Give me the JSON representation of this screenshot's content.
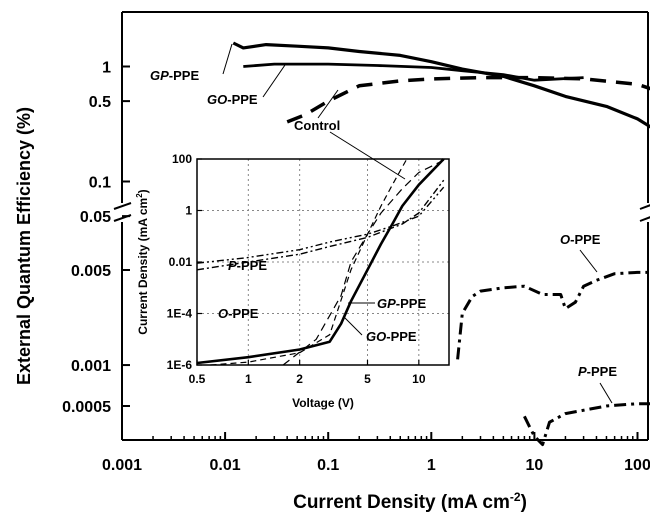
{
  "chart_data": [
    {
      "type": "line",
      "xlabel": "Current Density (mA cm",
      "xlabel_sup": "-2",
      "xlabel_close": ")",
      "ylabel": "External Quantum Efficiency (%)",
      "xscale": "log",
      "yscale": "log (broken axis)",
      "xlim": [
        0.001,
        150
      ],
      "xticks": [
        {
          "v": 0.001,
          "t": "0.001"
        },
        {
          "v": 0.01,
          "t": "0.01"
        },
        {
          "v": 0.1,
          "t": "0.1"
        },
        {
          "v": 1,
          "t": "1"
        },
        {
          "v": 10,
          "t": "10"
        },
        {
          "v": 100,
          "t": "100"
        }
      ],
      "yticks_upper": [
        {
          "v": 1,
          "t": "1"
        },
        {
          "v": 0.5,
          "t": "0.5"
        },
        {
          "v": 0.1,
          "t": "0.1"
        },
        {
          "v": 0.05,
          "t": "0.05"
        }
      ],
      "yticks_lower": [
        {
          "v": 0.005,
          "t": "0.005"
        },
        {
          "v": 0.001,
          "t": "0.001"
        },
        {
          "v": 0.0005,
          "t": "0.0005"
        }
      ],
      "series": [
        {
          "name": "GP-PPE",
          "name_it": "GP",
          "name_rest": "-PPE",
          "style": "solid-thick",
          "points": [
            [
              0.012,
              1.6
            ],
            [
              0.015,
              1.45
            ],
            [
              0.025,
              1.55
            ],
            [
              0.05,
              1.5
            ],
            [
              0.1,
              1.45
            ],
            [
              0.2,
              1.35
            ],
            [
              0.5,
              1.25
            ],
            [
              1,
              1.1
            ],
            [
              2,
              0.95
            ],
            [
              5,
              0.82
            ],
            [
              10,
              0.68
            ],
            [
              20,
              0.55
            ],
            [
              50,
              0.45
            ],
            [
              100,
              0.35
            ],
            [
              150,
              0.28
            ]
          ]
        },
        {
          "name": "GO-PPE",
          "name_it": "GO",
          "name_rest": "-PPE",
          "style": "solid",
          "points": [
            [
              0.015,
              1.0
            ],
            [
              0.03,
              1.05
            ],
            [
              0.1,
              1.05
            ],
            [
              0.3,
              1.02
            ],
            [
              1,
              0.98
            ],
            [
              2,
              0.92
            ],
            [
              5,
              0.85
            ],
            [
              10,
              0.76
            ],
            [
              30,
              0.8
            ]
          ]
        },
        {
          "name": "Control",
          "name_it": "",
          "name_rest": "Control",
          "style": "dashed",
          "points": [
            [
              0.04,
              0.33
            ],
            [
              0.06,
              0.38
            ],
            [
              0.1,
              0.5
            ],
            [
              0.2,
              0.68
            ],
            [
              0.5,
              0.75
            ],
            [
              1,
              0.78
            ],
            [
              3,
              0.8
            ],
            [
              10,
              0.8
            ],
            [
              30,
              0.78
            ],
            [
              100,
              0.7
            ],
            [
              150,
              0.62
            ]
          ]
        },
        {
          "name": "O-PPE",
          "name_it": "O",
          "name_rest": "-PPE",
          "style": "dash-dot",
          "points": [
            [
              1.8,
              0.0011
            ],
            [
              2,
              0.0024
            ],
            [
              2.5,
              0.0032
            ],
            [
              3,
              0.0035
            ],
            [
              5,
              0.0037
            ],
            [
              8,
              0.0038
            ],
            [
              12,
              0.0033
            ],
            [
              18,
              0.0033
            ],
            [
              20,
              0.0026
            ],
            [
              25,
              0.0029
            ],
            [
              30,
              0.0038
            ],
            [
              40,
              0.0042
            ],
            [
              60,
              0.0047
            ],
            [
              100,
              0.0048
            ],
            [
              150,
              0.0048
            ]
          ]
        },
        {
          "name": "P-PPE",
          "name_it": "P",
          "name_rest": "-PPE",
          "style": "dash-dot",
          "points": [
            [
              8,
              0.00042
            ],
            [
              9,
              0.00035
            ],
            [
              10,
              0.0003
            ],
            [
              12,
              0.00026
            ],
            [
              14,
              0.00038
            ],
            [
              20,
              0.00044
            ],
            [
              50,
              0.0005
            ],
            [
              100,
              0.00052
            ],
            [
              150,
              0.00052
            ]
          ]
        }
      ]
    },
    {
      "type": "line",
      "xlabel": "Voltage (V)",
      "ylabel": "Current Density (mA cm",
      "ylabel_sup": "2",
      "ylabel_close": ")",
      "xscale": "log",
      "yscale": "log",
      "xlim": [
        0.5,
        15
      ],
      "ylim": [
        1e-06,
        100
      ],
      "xticks": [
        {
          "v": 0.5,
          "t": "0.5"
        },
        {
          "v": 1,
          "t": "1"
        },
        {
          "v": 2,
          "t": "2"
        },
        {
          "v": 5,
          "t": "5"
        },
        {
          "v": 10,
          "t": "10"
        }
      ],
      "yticks": [
        {
          "v": 100,
          "t": "100"
        },
        {
          "v": 1,
          "t": "1"
        },
        {
          "v": 0.01,
          "t": "0.01"
        },
        {
          "v": 0.0001,
          "t": "1E-4"
        },
        {
          "v": 1e-06,
          "t": "1E-6"
        }
      ],
      "grid": true,
      "series": [
        {
          "name": "GP-PPE",
          "name_it": "GP",
          "name_rest": "-PPE",
          "style": "solid",
          "points": [
            [
              0.5,
              1.2e-06
            ],
            [
              1,
              2e-06
            ],
            [
              2,
              4e-06
            ],
            [
              3,
              8e-06
            ],
            [
              3.5,
              4e-05
            ],
            [
              4,
              0.0003
            ],
            [
              5,
              0.005
            ],
            [
              6,
              0.05
            ],
            [
              7,
              0.3
            ],
            [
              8,
              1.5
            ],
            [
              10,
              10
            ],
            [
              14,
              100
            ]
          ]
        },
        {
          "name": "GO-PPE",
          "name_it": "GO",
          "name_rest": "-PPE",
          "style": "dashed",
          "points": [
            [
              0.6,
              1e-06
            ],
            [
              1,
              1.3e-06
            ],
            [
              2,
              3e-06
            ],
            [
              3,
              1.5e-05
            ],
            [
              4,
              0.005
            ],
            [
              5,
              0.12
            ],
            [
              6,
              1.5
            ],
            [
              7,
              10
            ],
            [
              8.5,
              100
            ]
          ]
        },
        {
          "name": "Control",
          "name_it": "",
          "name_rest": "Control",
          "style": "dashed-long",
          "points": [
            [
              1.6,
              1e-06
            ],
            [
              2.5,
              1e-05
            ],
            [
              3.5,
              0.0005
            ],
            [
              4,
              0.01
            ],
            [
              5,
              0.12
            ],
            [
              6,
              0.8
            ],
            [
              8,
              7
            ],
            [
              10,
              30
            ],
            [
              14,
              90
            ]
          ]
        },
        {
          "name": "P-PPE",
          "name_it": "P",
          "name_rest": "-PPE",
          "style": "dash-dot-dot",
          "points": [
            [
              0.5,
              0.009
            ],
            [
              1,
              0.015
            ],
            [
              2,
              0.03
            ],
            [
              3,
              0.06
            ],
            [
              5,
              0.12
            ],
            [
              7,
              0.25
            ],
            [
              10,
              0.6
            ],
            [
              14,
              8
            ]
          ]
        },
        {
          "name": "O-PPE",
          "name_it": "O",
          "name_rest": "-PPE",
          "style": "dash-dot",
          "points": [
            [
              0.5,
              0.005
            ],
            [
              1,
              0.01
            ],
            [
              2,
              0.02
            ],
            [
              3,
              0.04
            ],
            [
              5,
              0.09
            ],
            [
              8,
              0.3
            ],
            [
              10,
              0.8
            ],
            [
              14,
              15
            ]
          ]
        }
      ]
    }
  ]
}
